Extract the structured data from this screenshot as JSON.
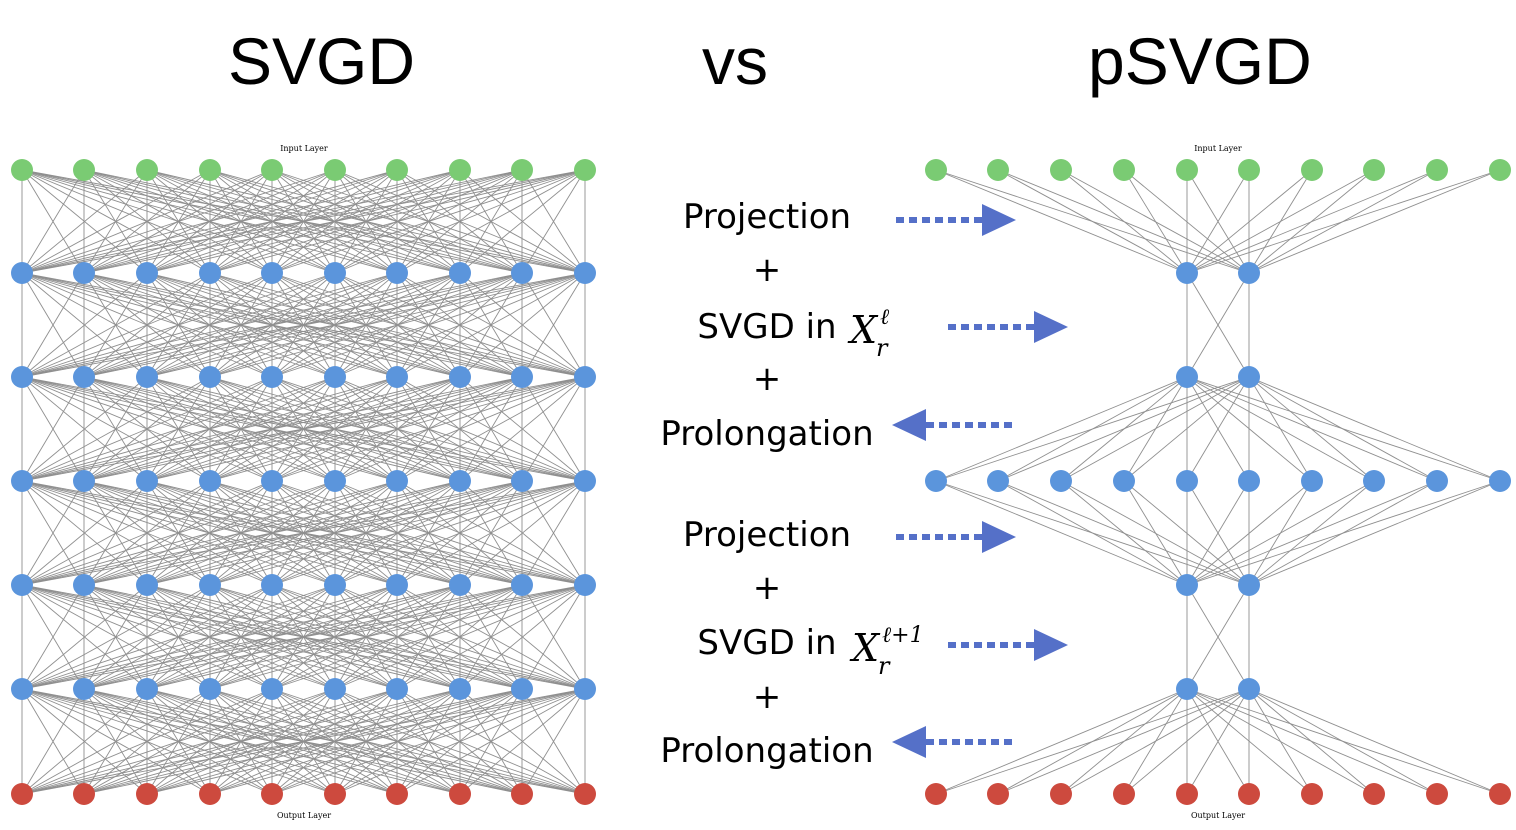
{
  "titles": {
    "left": "SVGD",
    "middle": "vs",
    "right": "pSVGD"
  },
  "layer_labels": {
    "input": "Input Layer",
    "output": "Output Layer"
  },
  "steps": [
    {
      "text": "Projection",
      "arrow": "right"
    },
    {
      "text": "+",
      "arrow": "none"
    },
    {
      "text": "SVGD in",
      "math_base": "X",
      "math_sup": "ℓ",
      "math_sub": "r",
      "arrow": "right"
    },
    {
      "text": "+",
      "arrow": "none"
    },
    {
      "text": "Prolongation",
      "arrow": "left"
    },
    {
      "text": "Projection",
      "arrow": "right"
    },
    {
      "text": "+",
      "arrow": "none"
    },
    {
      "text": "SVGD in",
      "math_base": "X",
      "math_sup": "ℓ+1",
      "math_sub": "r",
      "arrow": "right"
    },
    {
      "text": "+",
      "arrow": "none"
    },
    {
      "text": "Prolongation",
      "arrow": "left"
    }
  ],
  "networks": {
    "svgd": {
      "layer_sizes": [
        10,
        10,
        10,
        10,
        10,
        10,
        10
      ]
    },
    "psvgd": {
      "layer_sizes": [
        10,
        2,
        2,
        10,
        2,
        2,
        10
      ]
    }
  },
  "colors": {
    "input_node": "#7acb73",
    "hidden_node": "#5b95dc",
    "output_node": "#cd4a3e",
    "edge": "#8f8f8f",
    "arrow": "#5570c8"
  }
}
